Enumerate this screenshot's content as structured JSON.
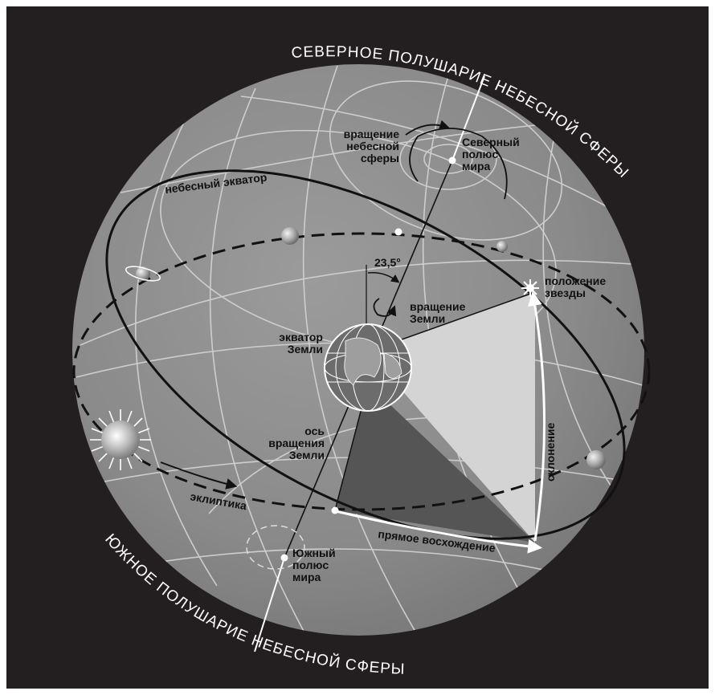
{
  "labels": {
    "north_hemisphere": "СЕВЕРНОЕ ПОЛУШАРИЕ НЕБЕСНОЙ СФЕРЫ",
    "south_hemisphere": "ЮЖНОЕ ПОЛУШАРИЕ НЕБЕСНОЙ СФЕРЫ",
    "celestial_sphere_rotation": [
      "вращение",
      "небесной",
      "сферы"
    ],
    "north_celestial_pole": [
      "Северный",
      "полюс",
      "мира"
    ],
    "celestial_equator": "небесный экватор",
    "tilt_angle": "23,5°",
    "star_position": [
      "положение",
      "звезды"
    ],
    "earth_rotation": [
      "вращение",
      "Земли"
    ],
    "earth_equator": [
      "экватор",
      "Земли"
    ],
    "earth_axis": [
      "ось",
      "вращения",
      "Земли"
    ],
    "declination": "склонение",
    "ecliptic": "эклиптика",
    "right_ascension": "прямое восхождение",
    "south_celestial_pole": [
      "Южный",
      "полюс",
      "мира"
    ]
  },
  "colors": {
    "background": "#231f20",
    "sphere": "#8a8a8a",
    "grid": "#c9c9c9",
    "light_wedge": "#d4d4d4",
    "dark_wedge": "#555555",
    "axis": "#111111"
  }
}
